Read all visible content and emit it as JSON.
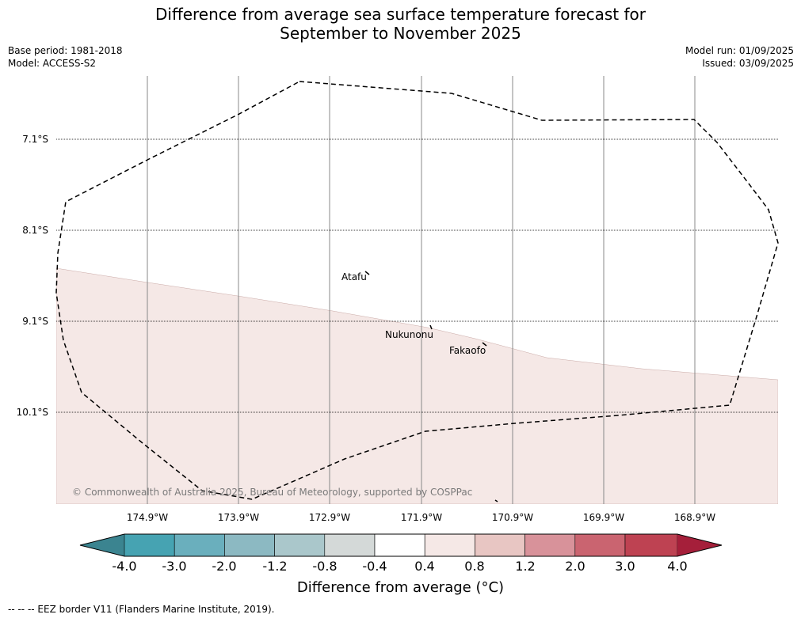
{
  "title": {
    "line1": "Difference from average sea surface temperature forecast for",
    "line2": "September to November 2025"
  },
  "meta_left": {
    "base_period": "Base period: 1981-2018",
    "model": "Model: ACCESS-S2"
  },
  "meta_right": {
    "model_run": "Model run: 01/09/2025",
    "issued": "Issued: 03/09/2025"
  },
  "map": {
    "lat_labels": [
      "7.1°S",
      "8.1°S",
      "9.1°S",
      "10.1°S"
    ],
    "lon_labels": [
      "174.9°W",
      "173.9°W",
      "172.9°W",
      "171.9°W",
      "170.9°W",
      "169.9°W",
      "168.9°W"
    ],
    "places": [
      "Atafu",
      "Nukunonu",
      "Fakaofo"
    ],
    "copyright": "© Commonwealth of Australia 2025, Bureau of Meteorology, supported by COSPPac",
    "anomaly_fill_color": "#f5e8e6"
  },
  "colorbar": {
    "ticks": [
      "-4.0",
      "-3.0",
      "-2.0",
      "-1.2",
      "-0.8",
      "-0.4",
      "0.4",
      "0.8",
      "1.2",
      "2.0",
      "3.0",
      "4.0"
    ],
    "colors": [
      "#3b8490",
      "#46a3b2",
      "#6aafbd",
      "#8cb9c2",
      "#aac7cb",
      "#d4d9d8",
      "#ffffff",
      "#f5e8e6",
      "#e8c6c3",
      "#d8929a",
      "#ca6470",
      "#be4252",
      "#a51f3a"
    ],
    "label": "Difference from average (°C)"
  },
  "footer": "--  --  -- EEZ border V11 (Flanders Marine Institute, 2019)."
}
